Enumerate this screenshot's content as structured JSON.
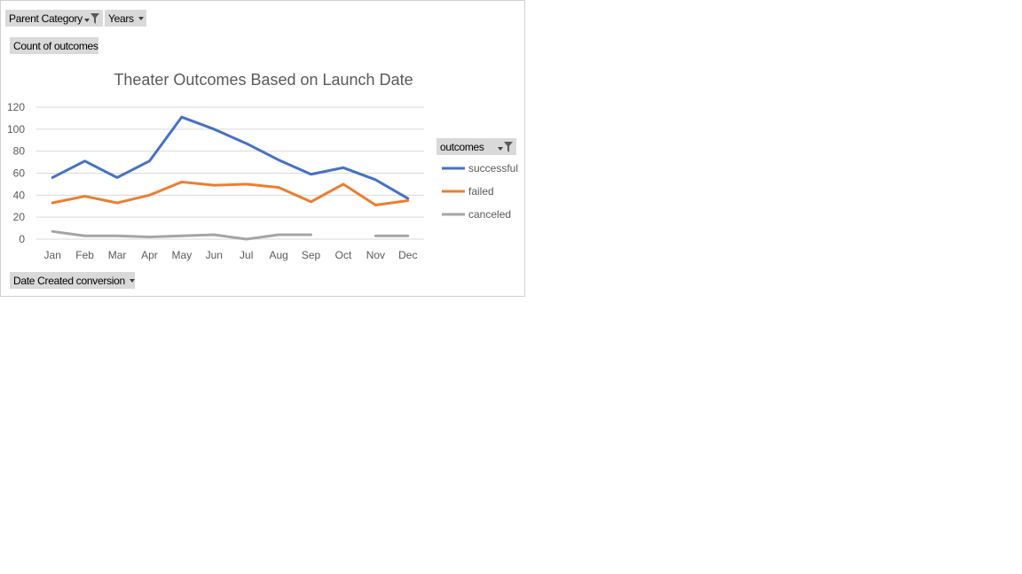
{
  "pivot": {
    "filter_fields": [
      "Parent Category",
      "Years"
    ],
    "value_field": "Count of outcomes",
    "axis_field": "Date Created conversion",
    "legend_field": "outcomes"
  },
  "chart_data": {
    "type": "line",
    "title": "Theater Outcomes Based on Launch Date",
    "categories": [
      "Jan",
      "Feb",
      "Mar",
      "Apr",
      "May",
      "Jun",
      "Jul",
      "Aug",
      "Sep",
      "Oct",
      "Nov",
      "Dec"
    ],
    "ylim": [
      0,
      120
    ],
    "yticks": [
      0,
      20,
      40,
      60,
      80,
      100,
      120
    ],
    "grid": true,
    "legend_position": "right",
    "series": [
      {
        "name": "successful",
        "color": "#4472c4",
        "values": [
          56,
          71,
          56,
          71,
          111,
          100,
          87,
          72,
          59,
          65,
          54,
          37
        ]
      },
      {
        "name": "failed",
        "color": "#ed7d31",
        "values": [
          33,
          39,
          33,
          40,
          52,
          49,
          50,
          47,
          34,
          50,
          31,
          35
        ]
      },
      {
        "name": "canceled",
        "color": "#a5a5a5",
        "values": [
          7,
          3,
          3,
          2,
          3,
          4,
          0,
          4,
          4,
          null,
          3,
          3
        ]
      }
    ]
  }
}
